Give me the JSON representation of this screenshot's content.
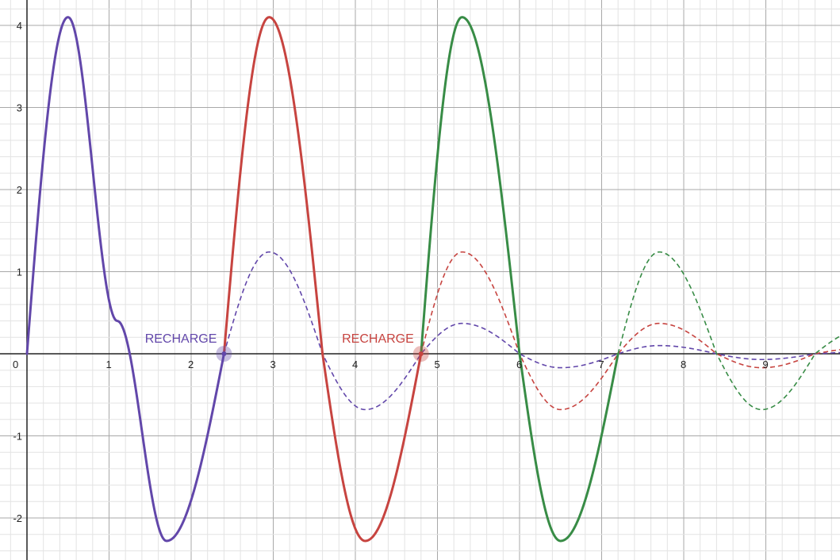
{
  "chart_data": {
    "type": "line",
    "title": "",
    "xlabel": "",
    "ylabel": "",
    "xlim": [
      0,
      10.2
    ],
    "ylim": [
      -2.5,
      4.3
    ],
    "grid": true,
    "x_ticks": [
      {
        "value": 0,
        "label": "0"
      },
      {
        "value": 1,
        "label": "1"
      },
      {
        "value": 2,
        "label": "2"
      },
      {
        "value": 3,
        "label": "3"
      },
      {
        "value": 4,
        "label": "4"
      },
      {
        "value": 5,
        "label": "5"
      },
      {
        "value": 6,
        "label": "6"
      },
      {
        "value": 7,
        "label": "7"
      },
      {
        "value": 8,
        "label": "8"
      },
      {
        "value": 9,
        "label": "9"
      }
    ],
    "y_ticks": [
      {
        "value": -2,
        "label": "-2"
      },
      {
        "value": -1,
        "label": "-1"
      },
      {
        "value": 1,
        "label": "1"
      },
      {
        "value": 2,
        "label": "2"
      },
      {
        "value": 3,
        "label": "3"
      },
      {
        "value": 4,
        "label": "4"
      }
    ],
    "series": [
      {
        "color": "#6247aa",
        "points": [
          [
            0,
            0
          ],
          [
            0.5,
            4.1
          ],
          [
            1.1,
            0.4
          ],
          [
            1.7,
            -2.28
          ],
          [
            2.4,
            0
          ],
          [
            2.95,
            1.24
          ],
          [
            3.6,
            0
          ],
          [
            4.12,
            -0.68
          ],
          [
            4.8,
            0
          ],
          [
            5.3,
            0.37
          ],
          [
            6.0,
            0
          ],
          [
            6.5,
            -0.17
          ],
          [
            7.2,
            0
          ],
          [
            7.7,
            0.1
          ],
          [
            8.4,
            0
          ],
          [
            8.95,
            -0.07
          ],
          [
            9.6,
            0
          ],
          [
            10.2,
            0.02
          ]
        ],
        "solid_until_x": 2.4
      },
      {
        "color": "#c74440",
        "points": [
          [
            2.4,
            0
          ],
          [
            2.95,
            4.1
          ],
          [
            3.6,
            0
          ],
          [
            4.12,
            -2.28
          ],
          [
            4.8,
            0
          ],
          [
            5.3,
            1.24
          ],
          [
            6.0,
            0
          ],
          [
            6.5,
            -0.68
          ],
          [
            7.2,
            0
          ],
          [
            7.7,
            0.37
          ],
          [
            8.4,
            0
          ],
          [
            8.95,
            -0.17
          ],
          [
            9.6,
            0
          ],
          [
            10.2,
            0.07
          ]
        ],
        "solid_until_x": 4.8
      },
      {
        "color": "#388c46",
        "points": [
          [
            4.8,
            0
          ],
          [
            5.3,
            4.1
          ],
          [
            6.0,
            0
          ],
          [
            6.5,
            -2.28
          ],
          [
            7.2,
            0
          ],
          [
            7.7,
            1.24
          ],
          [
            8.4,
            0
          ],
          [
            8.95,
            -0.68
          ],
          [
            9.6,
            0
          ],
          [
            10.2,
            0.3
          ]
        ],
        "solid_until_x": 7.2
      }
    ],
    "annotations": [
      {
        "text": "RECHARGE",
        "x": 2.4,
        "y": 0,
        "color": "#6247aa"
      },
      {
        "text": "RECHARGE",
        "x": 4.8,
        "y": 0,
        "color": "#c74440"
      }
    ]
  }
}
